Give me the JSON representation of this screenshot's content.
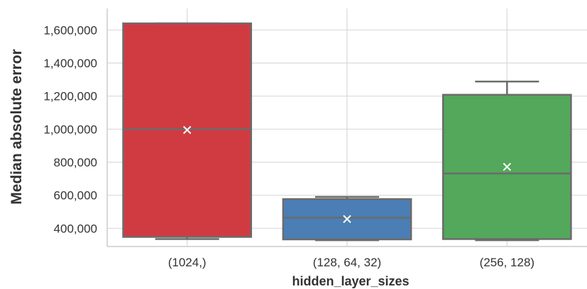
{
  "chart_data": {
    "type": "box",
    "title": "",
    "xlabel": "hidden_layer_sizes",
    "ylabel": "Median absolute error",
    "categories": [
      "(1024,)",
      "(128, 64, 32)",
      "(256, 128)"
    ],
    "ylim": [
      290000,
      1730000
    ],
    "yticks": [
      400000,
      600000,
      800000,
      1000000,
      1200000,
      1400000,
      1600000
    ],
    "ytick_labels": [
      "400,000",
      "600,000",
      "800,000",
      "1,000,000",
      "1,200,000",
      "1,400,000",
      "1,600,000"
    ],
    "grid": true,
    "boxes": [
      {
        "category": "(1024,)",
        "whisker_low": 335000,
        "q1": 348000,
        "median": 1000000,
        "q3": 1640000,
        "whisker_high": 1640000,
        "mean": 995000,
        "color": "#d03b42"
      },
      {
        "category": "(128, 64, 32)",
        "whisker_low": 328000,
        "q1": 333000,
        "median": 464000,
        "q3": 577000,
        "whisker_high": 590000,
        "mean": 456000,
        "color": "#4a7eb4"
      },
      {
        "category": "(256, 128)",
        "whisker_low": 328000,
        "q1": 335000,
        "median": 732000,
        "q3": 1208000,
        "whisker_high": 1288000,
        "mean": 772000,
        "color": "#53a85b"
      }
    ]
  }
}
